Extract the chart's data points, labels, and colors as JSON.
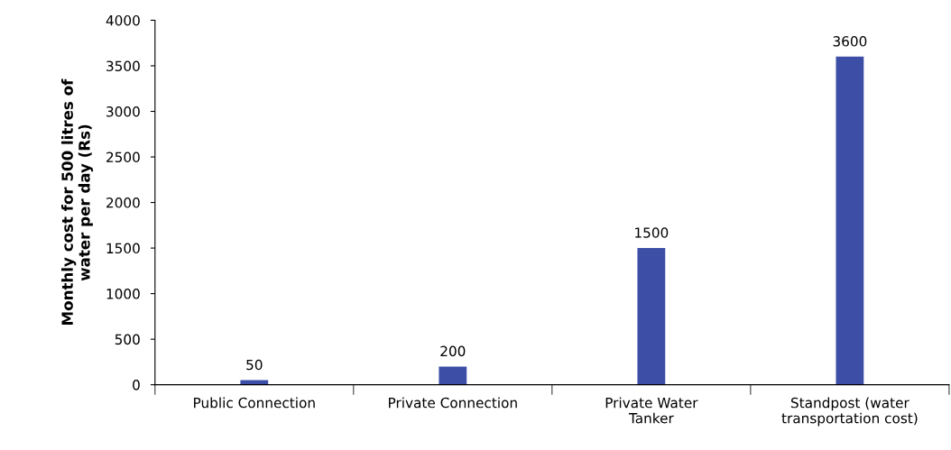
{
  "chart_data": {
    "type": "bar",
    "ylabel": "Monthly cost for 500 litres of\nwater per day (Rs)",
    "categories": [
      "Public Connection",
      "Private Connection",
      "Private Water\nTanker",
      "Standpost (water\ntransportation cost)"
    ],
    "values": [
      50,
      200,
      1500,
      3600
    ],
    "color": "#3d4ea6",
    "ylim": [
      0,
      4000
    ],
    "yticks": [
      0,
      500,
      1000,
      1500,
      2000,
      2500,
      3000,
      3500,
      4000
    ],
    "data_labels": true,
    "grid": false,
    "legend": false
  }
}
